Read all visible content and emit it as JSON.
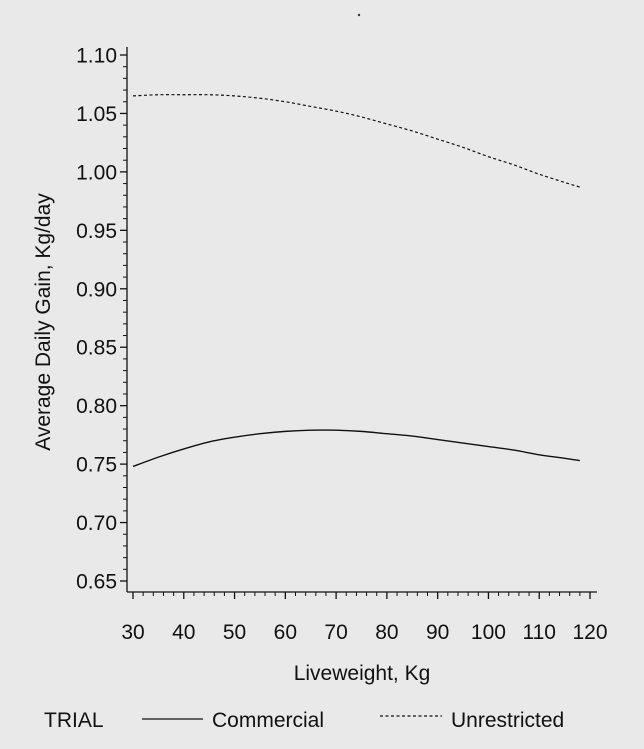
{
  "chart_data": {
    "type": "line",
    "title": "",
    "xlabel": "Liveweight, Kg",
    "ylabel": "Average Daily Gain, Kg/day",
    "xlim": [
      30,
      120
    ],
    "ylim": [
      0.65,
      1.1
    ],
    "x_ticks": [
      30,
      40,
      50,
      60,
      70,
      80,
      90,
      100,
      110,
      120
    ],
    "y_ticks": [
      0.65,
      0.7,
      0.75,
      0.8,
      0.85,
      0.9,
      0.95,
      1.0,
      1.05,
      1.1
    ],
    "x_tick_labels": [
      "30",
      "40",
      "50",
      "60",
      "70",
      "80",
      "90",
      "100",
      "110",
      "120"
    ],
    "y_tick_labels": [
      "0.65",
      "0.70",
      "0.75",
      "0.80",
      "0.85",
      "0.90",
      "0.95",
      "1.00",
      "1.05",
      "1.10"
    ],
    "grid": false,
    "legend_placement": "bottom",
    "legend_title": "TRIAL",
    "series": [
      {
        "name": "Commercial",
        "style": "solid",
        "color": "#111111",
        "x": [
          30,
          35,
          40,
          45,
          50,
          55,
          60,
          65,
          70,
          75,
          80,
          85,
          90,
          95,
          100,
          105,
          110,
          115,
          118
        ],
        "y": [
          0.748,
          0.756,
          0.763,
          0.769,
          0.773,
          0.776,
          0.778,
          0.779,
          0.779,
          0.778,
          0.776,
          0.774,
          0.771,
          0.768,
          0.765,
          0.762,
          0.758,
          0.755,
          0.753
        ]
      },
      {
        "name": "Unrestricted",
        "style": "dashed",
        "color": "#111111",
        "x": [
          30,
          35,
          40,
          45,
          50,
          55,
          60,
          65,
          70,
          75,
          80,
          85,
          90,
          95,
          100,
          105,
          110,
          115,
          118
        ],
        "y": [
          1.065,
          1.066,
          1.066,
          1.066,
          1.065,
          1.063,
          1.06,
          1.056,
          1.052,
          1.047,
          1.041,
          1.035,
          1.028,
          1.021,
          1.013,
          1.006,
          0.998,
          0.991,
          0.987
        ]
      }
    ]
  }
}
